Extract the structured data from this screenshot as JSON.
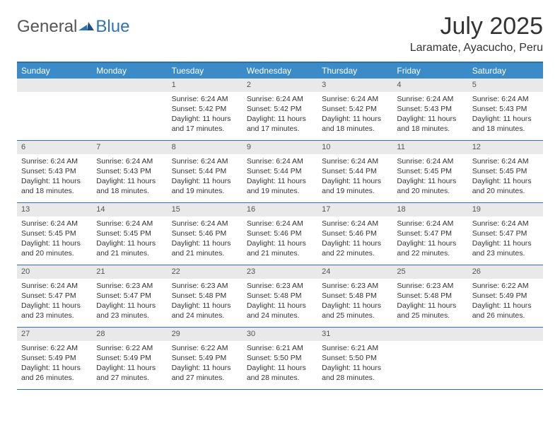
{
  "brand": {
    "text1": "General",
    "text2": "Blue"
  },
  "title": "July 2025",
  "location": "Laramate, Ayacucho, Peru",
  "weekdays": [
    "Sunday",
    "Monday",
    "Tuesday",
    "Wednesday",
    "Thursday",
    "Friday",
    "Saturday"
  ],
  "colors": {
    "header_bg": "#3b8bc9",
    "border": "#2f6fa7",
    "daynum_bg": "#e9e9e9",
    "text": "#333333",
    "logo_blue": "#2e74b5"
  },
  "weeks": [
    [
      {
        "n": "",
        "sunrise": "",
        "sunset": "",
        "daylight": ""
      },
      {
        "n": "",
        "sunrise": "",
        "sunset": "",
        "daylight": ""
      },
      {
        "n": "1",
        "sunrise": "Sunrise: 6:24 AM",
        "sunset": "Sunset: 5:42 PM",
        "daylight": "Daylight: 11 hours and 17 minutes."
      },
      {
        "n": "2",
        "sunrise": "Sunrise: 6:24 AM",
        "sunset": "Sunset: 5:42 PM",
        "daylight": "Daylight: 11 hours and 17 minutes."
      },
      {
        "n": "3",
        "sunrise": "Sunrise: 6:24 AM",
        "sunset": "Sunset: 5:42 PM",
        "daylight": "Daylight: 11 hours and 18 minutes."
      },
      {
        "n": "4",
        "sunrise": "Sunrise: 6:24 AM",
        "sunset": "Sunset: 5:43 PM",
        "daylight": "Daylight: 11 hours and 18 minutes."
      },
      {
        "n": "5",
        "sunrise": "Sunrise: 6:24 AM",
        "sunset": "Sunset: 5:43 PM",
        "daylight": "Daylight: 11 hours and 18 minutes."
      }
    ],
    [
      {
        "n": "6",
        "sunrise": "Sunrise: 6:24 AM",
        "sunset": "Sunset: 5:43 PM",
        "daylight": "Daylight: 11 hours and 18 minutes."
      },
      {
        "n": "7",
        "sunrise": "Sunrise: 6:24 AM",
        "sunset": "Sunset: 5:43 PM",
        "daylight": "Daylight: 11 hours and 18 minutes."
      },
      {
        "n": "8",
        "sunrise": "Sunrise: 6:24 AM",
        "sunset": "Sunset: 5:44 PM",
        "daylight": "Daylight: 11 hours and 19 minutes."
      },
      {
        "n": "9",
        "sunrise": "Sunrise: 6:24 AM",
        "sunset": "Sunset: 5:44 PM",
        "daylight": "Daylight: 11 hours and 19 minutes."
      },
      {
        "n": "10",
        "sunrise": "Sunrise: 6:24 AM",
        "sunset": "Sunset: 5:44 PM",
        "daylight": "Daylight: 11 hours and 19 minutes."
      },
      {
        "n": "11",
        "sunrise": "Sunrise: 6:24 AM",
        "sunset": "Sunset: 5:45 PM",
        "daylight": "Daylight: 11 hours and 20 minutes."
      },
      {
        "n": "12",
        "sunrise": "Sunrise: 6:24 AM",
        "sunset": "Sunset: 5:45 PM",
        "daylight": "Daylight: 11 hours and 20 minutes."
      }
    ],
    [
      {
        "n": "13",
        "sunrise": "Sunrise: 6:24 AM",
        "sunset": "Sunset: 5:45 PM",
        "daylight": "Daylight: 11 hours and 20 minutes."
      },
      {
        "n": "14",
        "sunrise": "Sunrise: 6:24 AM",
        "sunset": "Sunset: 5:45 PM",
        "daylight": "Daylight: 11 hours and 21 minutes."
      },
      {
        "n": "15",
        "sunrise": "Sunrise: 6:24 AM",
        "sunset": "Sunset: 5:46 PM",
        "daylight": "Daylight: 11 hours and 21 minutes."
      },
      {
        "n": "16",
        "sunrise": "Sunrise: 6:24 AM",
        "sunset": "Sunset: 5:46 PM",
        "daylight": "Daylight: 11 hours and 21 minutes."
      },
      {
        "n": "17",
        "sunrise": "Sunrise: 6:24 AM",
        "sunset": "Sunset: 5:46 PM",
        "daylight": "Daylight: 11 hours and 22 minutes."
      },
      {
        "n": "18",
        "sunrise": "Sunrise: 6:24 AM",
        "sunset": "Sunset: 5:47 PM",
        "daylight": "Daylight: 11 hours and 22 minutes."
      },
      {
        "n": "19",
        "sunrise": "Sunrise: 6:24 AM",
        "sunset": "Sunset: 5:47 PM",
        "daylight": "Daylight: 11 hours and 23 minutes."
      }
    ],
    [
      {
        "n": "20",
        "sunrise": "Sunrise: 6:24 AM",
        "sunset": "Sunset: 5:47 PM",
        "daylight": "Daylight: 11 hours and 23 minutes."
      },
      {
        "n": "21",
        "sunrise": "Sunrise: 6:23 AM",
        "sunset": "Sunset: 5:47 PM",
        "daylight": "Daylight: 11 hours and 23 minutes."
      },
      {
        "n": "22",
        "sunrise": "Sunrise: 6:23 AM",
        "sunset": "Sunset: 5:48 PM",
        "daylight": "Daylight: 11 hours and 24 minutes."
      },
      {
        "n": "23",
        "sunrise": "Sunrise: 6:23 AM",
        "sunset": "Sunset: 5:48 PM",
        "daylight": "Daylight: 11 hours and 24 minutes."
      },
      {
        "n": "24",
        "sunrise": "Sunrise: 6:23 AM",
        "sunset": "Sunset: 5:48 PM",
        "daylight": "Daylight: 11 hours and 25 minutes."
      },
      {
        "n": "25",
        "sunrise": "Sunrise: 6:23 AM",
        "sunset": "Sunset: 5:48 PM",
        "daylight": "Daylight: 11 hours and 25 minutes."
      },
      {
        "n": "26",
        "sunrise": "Sunrise: 6:22 AM",
        "sunset": "Sunset: 5:49 PM",
        "daylight": "Daylight: 11 hours and 26 minutes."
      }
    ],
    [
      {
        "n": "27",
        "sunrise": "Sunrise: 6:22 AM",
        "sunset": "Sunset: 5:49 PM",
        "daylight": "Daylight: 11 hours and 26 minutes."
      },
      {
        "n": "28",
        "sunrise": "Sunrise: 6:22 AM",
        "sunset": "Sunset: 5:49 PM",
        "daylight": "Daylight: 11 hours and 27 minutes."
      },
      {
        "n": "29",
        "sunrise": "Sunrise: 6:22 AM",
        "sunset": "Sunset: 5:49 PM",
        "daylight": "Daylight: 11 hours and 27 minutes."
      },
      {
        "n": "30",
        "sunrise": "Sunrise: 6:21 AM",
        "sunset": "Sunset: 5:50 PM",
        "daylight": "Daylight: 11 hours and 28 minutes."
      },
      {
        "n": "31",
        "sunrise": "Sunrise: 6:21 AM",
        "sunset": "Sunset: 5:50 PM",
        "daylight": "Daylight: 11 hours and 28 minutes."
      },
      {
        "n": "",
        "sunrise": "",
        "sunset": "",
        "daylight": ""
      },
      {
        "n": "",
        "sunrise": "",
        "sunset": "",
        "daylight": ""
      }
    ]
  ]
}
